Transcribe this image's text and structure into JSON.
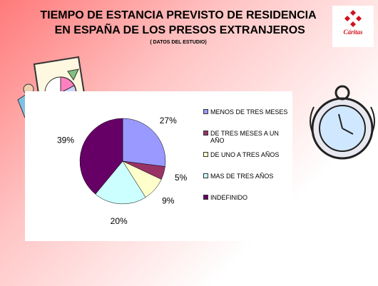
{
  "chart_data": {
    "type": "pie",
    "title": "TIEMPO DE ESTANCIA PREVISTO DE RESIDENCIA EN ESPAÑA DE LOS PRESOS EXTRANJEROS",
    "subtitle": "( DATOS DEL ESTUDIO)",
    "logo": "Cáritas",
    "categories": [
      "MENOS DE TRES MESES",
      "DE TRES MESES A UN AÑO",
      "DE UNO A TRES AÑOS",
      "MAS DE TRES AÑOS",
      "INDEFINIDO"
    ],
    "values": [
      27,
      5,
      9,
      20,
      39
    ],
    "value_labels": [
      "27%",
      "5%",
      "9%",
      "20%",
      "39%"
    ],
    "colors": [
      "#9999ff",
      "#993366",
      "#ffffcc",
      "#ccffff",
      "#660066"
    ]
  }
}
